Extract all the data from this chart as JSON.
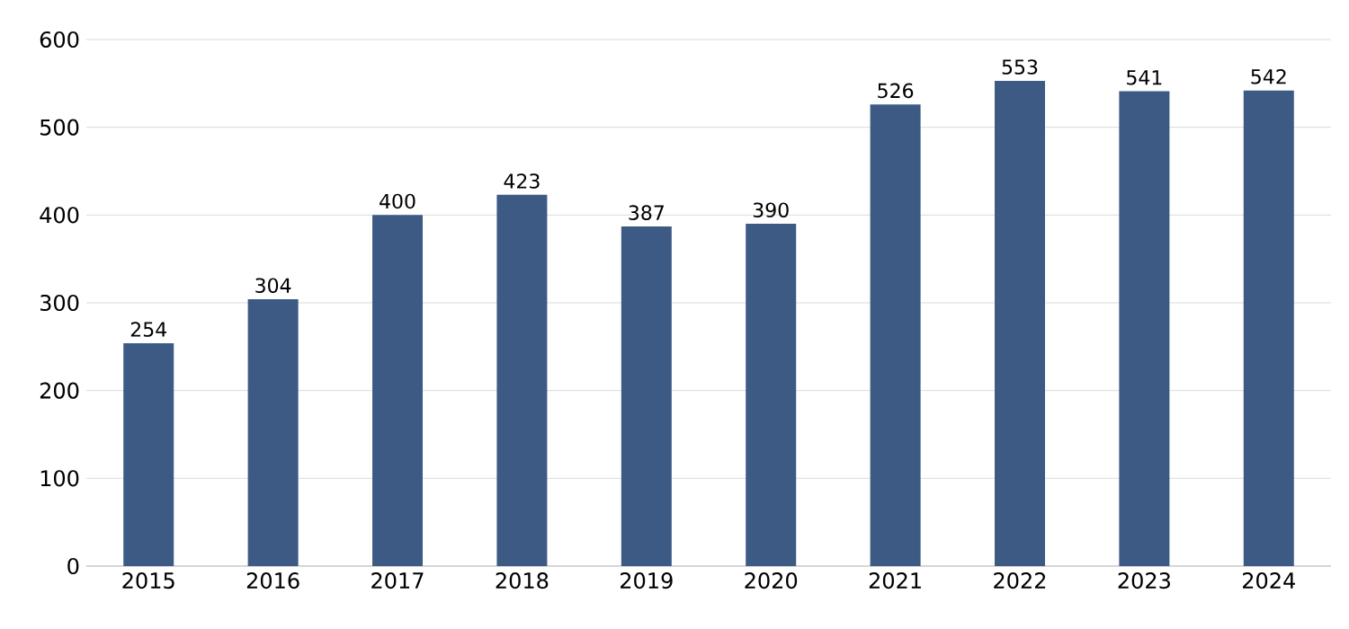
{
  "chart_data": {
    "type": "bar",
    "categories": [
      "2015",
      "2016",
      "2017",
      "2018",
      "2019",
      "2020",
      "2021",
      "2022",
      "2023",
      "2024"
    ],
    "values": [
      254,
      304,
      400,
      423,
      387,
      390,
      526,
      553,
      541,
      542
    ],
    "color": "#3d5a85",
    "ylim": [
      0,
      600
    ],
    "yticks": [
      0,
      100,
      200,
      300,
      400,
      500,
      600
    ],
    "grid": "y",
    "data_labels": true
  }
}
